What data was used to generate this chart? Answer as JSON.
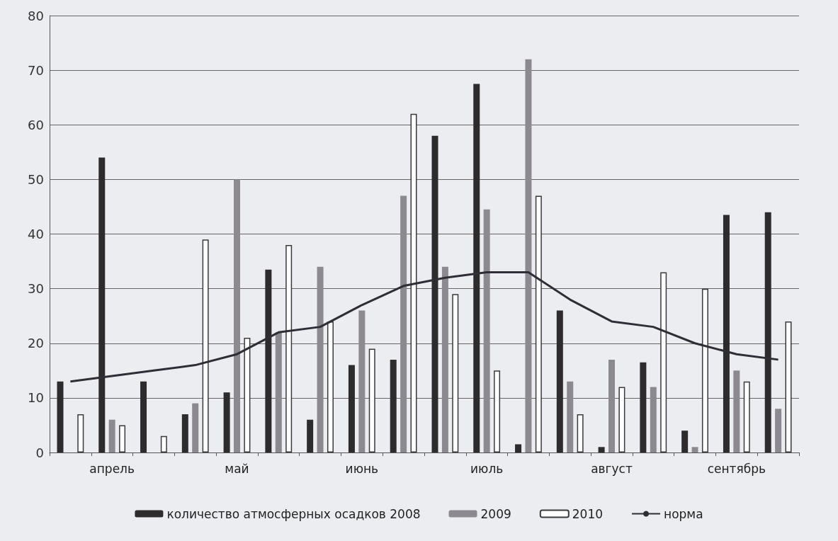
{
  "chart_data": {
    "type": "bar",
    "categories": [
      null,
      "апрель",
      null,
      null,
      "май",
      null,
      null,
      "июнь",
      null,
      null,
      "июль",
      null,
      null,
      "август",
      null,
      null,
      "сентябрь",
      null
    ],
    "series": [
      {
        "name": "количество атмосферных осадков 2008",
        "color": "#2e2b2c",
        "values": [
          13,
          54,
          13,
          7,
          11,
          33.5,
          6,
          16,
          17,
          58,
          67.5,
          1.5,
          26,
          1,
          16.5,
          4,
          43.5,
          44
        ]
      },
      {
        "name": "2009",
        "color": "#8c8a90",
        "values": [
          0,
          6,
          0,
          9,
          50,
          22,
          34,
          26,
          47,
          34,
          44.5,
          72,
          13,
          17,
          12,
          1,
          15,
          8
        ]
      },
      {
        "name": "2010",
        "color": "#ffffff",
        "values": [
          7,
          5,
          3,
          39,
          21,
          38,
          24,
          19,
          62,
          29,
          15,
          47,
          7,
          12,
          33,
          30,
          13,
          24
        ]
      },
      {
        "name": "норма",
        "type": "line",
        "color": "#2f2d36",
        "values": [
          13,
          14,
          15,
          16,
          18,
          22,
          23,
          27,
          30.5,
          32,
          33,
          33,
          28,
          24,
          23,
          20,
          18,
          17
        ]
      }
    ],
    "ylim": [
      0,
      80
    ],
    "yticks": [
      0,
      10,
      20,
      30,
      40,
      50,
      60,
      70,
      80
    ],
    "grid": "y",
    "legend": "bottom",
    "marker": "none"
  }
}
